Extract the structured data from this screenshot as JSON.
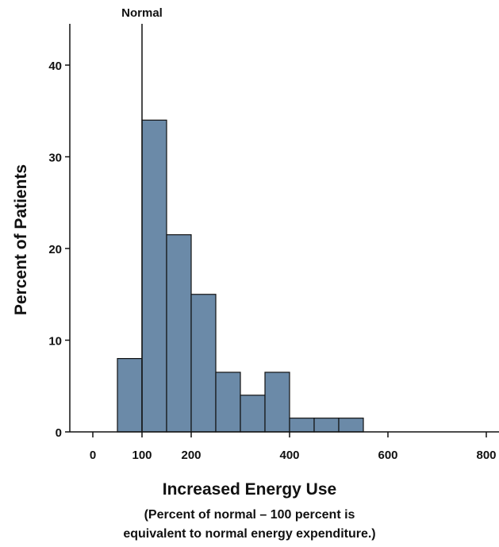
{
  "chart_data": {
    "type": "bar",
    "subtype": "histogram",
    "bins": [
      {
        "from": 50,
        "to": 100,
        "value": 8
      },
      {
        "from": 100,
        "to": 150,
        "value": 34
      },
      {
        "from": 150,
        "to": 200,
        "value": 21.5
      },
      {
        "from": 200,
        "to": 250,
        "value": 15
      },
      {
        "from": 250,
        "to": 300,
        "value": 6.5
      },
      {
        "from": 300,
        "to": 350,
        "value": 4
      },
      {
        "from": 350,
        "to": 400,
        "value": 6.5
      },
      {
        "from": 400,
        "to": 450,
        "value": 1.5
      },
      {
        "from": 450,
        "to": 500,
        "value": 1.5
      },
      {
        "from": 500,
        "to": 550,
        "value": 1.5
      }
    ],
    "xlim": [
      -50,
      800
    ],
    "ylim": [
      0,
      45
    ],
    "xticks": [
      0,
      100,
      200,
      400,
      600,
      800
    ],
    "yticks": [
      0,
      10,
      20,
      30,
      40
    ],
    "ylabel": "Percent of Patients",
    "xlabel": "Increased Energy Use",
    "xlabel_sub": [
      "(Percent of normal – 100 percent is",
      "equivalent to normal energy expenditure.)"
    ],
    "reference_line": {
      "x": 100,
      "label": "Normal"
    },
    "bar_color": "#6b8aa8",
    "grid": false
  }
}
